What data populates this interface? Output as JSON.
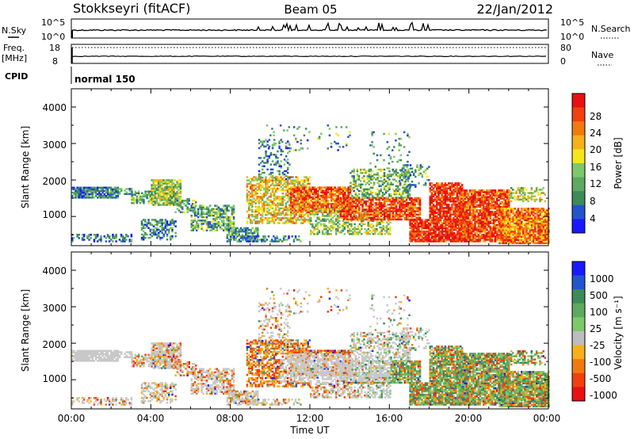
{
  "header": {
    "station": "Stokkseyri (fitACF)",
    "beam": "Beam 05",
    "date": "22/Jan/2012"
  },
  "side_labels": {
    "nsky": "N.Sky",
    "freq_line1": "Freq.",
    "freq_line2": "[MHz]",
    "cpid": "CPID",
    "nsearch": "N.Search",
    "nave": "Nave"
  },
  "noise_axis": {
    "left_ticks": [
      "10^5",
      "10^0"
    ],
    "right_ticks": [
      "10^5",
      "10^0"
    ]
  },
  "freq_axis": {
    "left_ticks": [
      "18",
      "8"
    ],
    "right_ticks": [
      "80",
      "0"
    ]
  },
  "cpid_text": "normal 150",
  "colors": {
    "power_scale": [
      "#1a1aff",
      "#2255cc",
      "#3d8a5a",
      "#5fa860",
      "#7cc86a",
      "#f5e61a",
      "#f5b01a",
      "#f07a10",
      "#f04010",
      "#e81010"
    ],
    "velocity_scale": [
      "#1a1aff",
      "#2255cc",
      "#3d8a5a",
      "#5fa860",
      "#7cc86a",
      "#bdbdbd",
      "#f5b01a",
      "#f07a10",
      "#f04010",
      "#e81010"
    ],
    "ground_scatter": "#c8c8c8"
  },
  "chart_data": [
    {
      "type": "heatmap",
      "panel": "power",
      "ylabel": "Slant Range [km]",
      "colorbar_label": "Power [dB]",
      "colorbar_ticks": [
        "28",
        "24",
        "20",
        "16",
        "12",
        "8",
        "4"
      ],
      "y_ticks": [
        "4000",
        "3000",
        "2000",
        "1000"
      ],
      "xlim": [
        0,
        24
      ],
      "ylim": [
        200,
        4500
      ],
      "grid": false,
      "x": [
        "00:00",
        "04:00",
        "08:00",
        "12:00",
        "16:00",
        "20:00",
        "00:00"
      ]
    },
    {
      "type": "heatmap",
      "panel": "velocity",
      "ylabel": "Slant Range [km]",
      "xlabel": "Time UT",
      "colorbar_label": "Velocity [m s⁻¹]",
      "colorbar_ticks": [
        "1000",
        "500",
        "100",
        "25",
        "-25",
        "-100",
        "-500",
        "-1000"
      ],
      "y_ticks": [
        "4000",
        "3000",
        "2000",
        "1000"
      ],
      "x_ticks": [
        "00:00",
        "04:00",
        "08:00",
        "12:00",
        "16:00",
        "20:00",
        "00:00"
      ],
      "xlim": [
        0,
        24
      ],
      "ylim": [
        200,
        4500
      ],
      "grid": false
    }
  ]
}
